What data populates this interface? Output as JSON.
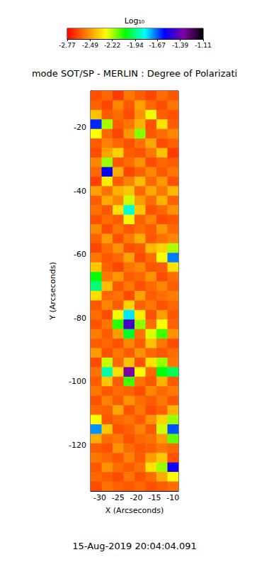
{
  "chart_data": {
    "type": "heatmap",
    "title": "mode SOT/SP - MERLIN : Degree of Polarizati",
    "x_label": "X (Arcseconds)",
    "y_label": "Y (Arcseconds)",
    "annotations": [
      "15-Aug-2019 20:04:04.091"
    ],
    "xlim": [
      -32.5,
      -8.5
    ],
    "xticks": [
      -30,
      -25,
      -20,
      -15,
      -10
    ],
    "ylim": [
      -134.5,
      -8.5
    ],
    "yticks": [
      -20,
      -40,
      -60,
      -80,
      -100,
      -120
    ],
    "x": [
      -31,
      -28,
      -25,
      -22,
      -19,
      -16,
      -13,
      -10
    ],
    "y": [
      -10,
      -13,
      -16,
      -19,
      -22,
      -25,
      -28,
      -31,
      -34,
      -37,
      -40,
      -43,
      -46,
      -49,
      -52,
      -55,
      -58,
      -61,
      -64,
      -67,
      -70,
      -73,
      -76,
      -79,
      -82,
      -85,
      -88,
      -91,
      -94,
      -97,
      -100,
      -103,
      -106,
      -109,
      -112,
      -115,
      -118,
      -121,
      -124,
      -127,
      -130,
      -133
    ],
    "cells": [
      [
        -2.62,
        -2.58,
        -2.66,
        -2.55,
        -2.6,
        -2.64,
        -2.57,
        -2.61
      ],
      [
        -2.59,
        -2.64,
        -2.52,
        -2.61,
        -2.47,
        -2.58,
        -2.63,
        -2.55
      ],
      [
        -2.41,
        -2.6,
        -2.57,
        -2.63,
        -2.5,
        -2.28,
        -2.59,
        -2.62
      ],
      [
        -1.62,
        -2.21,
        -2.6,
        -2.55,
        -2.44,
        -2.62,
        -2.35,
        -2.6
      ],
      [
        -2.3,
        -2.58,
        -2.64,
        -2.49,
        -2.18,
        -2.61,
        -2.57,
        -2.52
      ],
      [
        -2.6,
        -2.53,
        -2.58,
        -2.62,
        -2.56,
        -2.46,
        -2.63,
        -2.59
      ],
      [
        -2.63,
        -2.47,
        -2.38,
        -2.6,
        -2.62,
        -2.55,
        -2.41,
        -2.66
      ],
      [
        -2.52,
        -2.2,
        -2.61,
        -2.57,
        -2.5,
        -2.63,
        -2.58,
        -2.6
      ],
      [
        -2.58,
        -1.58,
        -2.45,
        -2.64,
        -2.59,
        -2.52,
        -2.61,
        -2.55
      ],
      [
        -2.65,
        -2.33,
        -2.6,
        -2.53,
        -2.42,
        -2.58,
        -2.49,
        -2.62
      ],
      [
        -2.47,
        -2.56,
        -2.44,
        -2.4,
        -2.58,
        -2.46,
        -2.55,
        -2.43
      ],
      [
        -2.6,
        -2.45,
        -2.52,
        -2.25,
        -2.48,
        -2.57,
        -2.44,
        -2.59
      ],
      [
        -2.56,
        -2.61,
        -2.35,
        -1.86,
        -2.4,
        -2.62,
        -2.58,
        -2.5
      ],
      [
        -2.62,
        -2.57,
        -2.6,
        -2.31,
        -2.59,
        -2.53,
        -2.63,
        -2.61
      ],
      [
        -2.51,
        -2.63,
        -2.55,
        -2.61,
        -2.57,
        -2.6,
        -2.49,
        -2.58
      ],
      [
        -2.59,
        -2.48,
        -2.62,
        -2.54,
        -2.45,
        -2.61,
        -2.56,
        -2.52
      ],
      [
        -2.64,
        -2.57,
        -2.5,
        -2.62,
        -2.6,
        -2.43,
        -2.38,
        -2.22
      ],
      [
        -2.55,
        -2.61,
        -2.58,
        -2.47,
        -2.63,
        -2.57,
        -2.29,
        -1.7
      ],
      [
        -2.4,
        -2.59,
        -2.64,
        -2.56,
        -2.52,
        -2.61,
        -2.6,
        -2.35
      ],
      [
        -2.05,
        -2.55,
        -2.49,
        -2.6,
        -2.58,
        -2.5,
        -2.63,
        -2.57
      ],
      [
        -1.95,
        -2.42,
        -2.61,
        -2.55,
        -2.62,
        -2.58,
        -2.52,
        -2.6
      ],
      [
        -2.36,
        -2.58,
        -2.56,
        -2.63,
        -2.47,
        -2.6,
        -2.57,
        -2.54
      ],
      [
        -2.61,
        -2.52,
        -2.6,
        -2.38,
        -2.59,
        -2.55,
        -2.62,
        -2.58
      ],
      [
        -2.57,
        -2.63,
        -2.28,
        -1.8,
        -2.33,
        -2.62,
        -2.48,
        -2.61
      ],
      [
        -2.62,
        -2.55,
        -2.1,
        -1.45,
        -2.19,
        -2.57,
        -2.3,
        -2.59
      ],
      [
        -2.54,
        -2.6,
        -2.48,
        -2.02,
        -2.56,
        -2.26,
        -2.12,
        -2.5
      ],
      [
        -2.6,
        -2.58,
        -2.62,
        -2.52,
        -2.6,
        -2.41,
        -2.55,
        -2.63
      ],
      [
        -2.48,
        -2.62,
        -2.55,
        -2.6,
        -2.5,
        -2.58,
        -2.61,
        -2.57
      ],
      [
        -2.63,
        -2.24,
        -2.58,
        -2.41,
        -2.62,
        -2.35,
        -2.2,
        -2.55
      ],
      [
        -2.56,
        -1.9,
        -2.36,
        -1.35,
        -2.3,
        -2.58,
        -2.05,
        -1.98
      ],
      [
        -2.6,
        -2.4,
        -2.6,
        -2.12,
        -2.56,
        -2.61,
        -2.44,
        -2.6
      ],
      [
        -2.55,
        -2.61,
        -2.57,
        -2.59,
        -2.63,
        -2.52,
        -2.58,
        -2.54
      ],
      [
        -2.62,
        -2.53,
        -2.6,
        -2.5,
        -2.57,
        -2.6,
        -2.55,
        -2.61
      ],
      [
        -2.58,
        -2.59,
        -2.46,
        -2.62,
        -2.55,
        -2.63,
        -2.59,
        -2.44
      ],
      [
        -2.3,
        -2.61,
        -2.58,
        -2.56,
        -2.6,
        -2.5,
        -2.38,
        -2.2
      ],
      [
        -1.72,
        -2.4,
        -2.62,
        -2.59,
        -2.53,
        -2.61,
        -2.25,
        -1.66
      ],
      [
        -2.45,
        -2.57,
        -2.55,
        -2.62,
        -2.58,
        -2.56,
        -2.48,
        -2.15
      ],
      [
        -2.6,
        -2.62,
        -2.5,
        -2.57,
        -2.61,
        -2.59,
        -2.55,
        -2.58
      ],
      [
        -2.55,
        -2.58,
        -2.61,
        -2.53,
        -2.6,
        -2.48,
        -2.4,
        -2.62
      ],
      [
        -2.61,
        -2.5,
        -2.57,
        -2.6,
        -2.56,
        -2.35,
        -2.2,
        -1.55
      ],
      [
        -2.58,
        -2.6,
        -2.63,
        -2.55,
        -2.62,
        -2.57,
        -2.45,
        -2.3
      ],
      [
        -2.63,
        -2.56,
        -2.59,
        -2.61,
        -2.58,
        -2.62,
        -2.6,
        -2.57
      ]
    ],
    "colorbar": {
      "label": "Log₁₀",
      "range": [
        -2.77,
        -1.11
      ],
      "ticks": [
        -2.77,
        -2.49,
        -2.22,
        -1.94,
        -1.67,
        -1.39,
        -1.11
      ]
    }
  }
}
